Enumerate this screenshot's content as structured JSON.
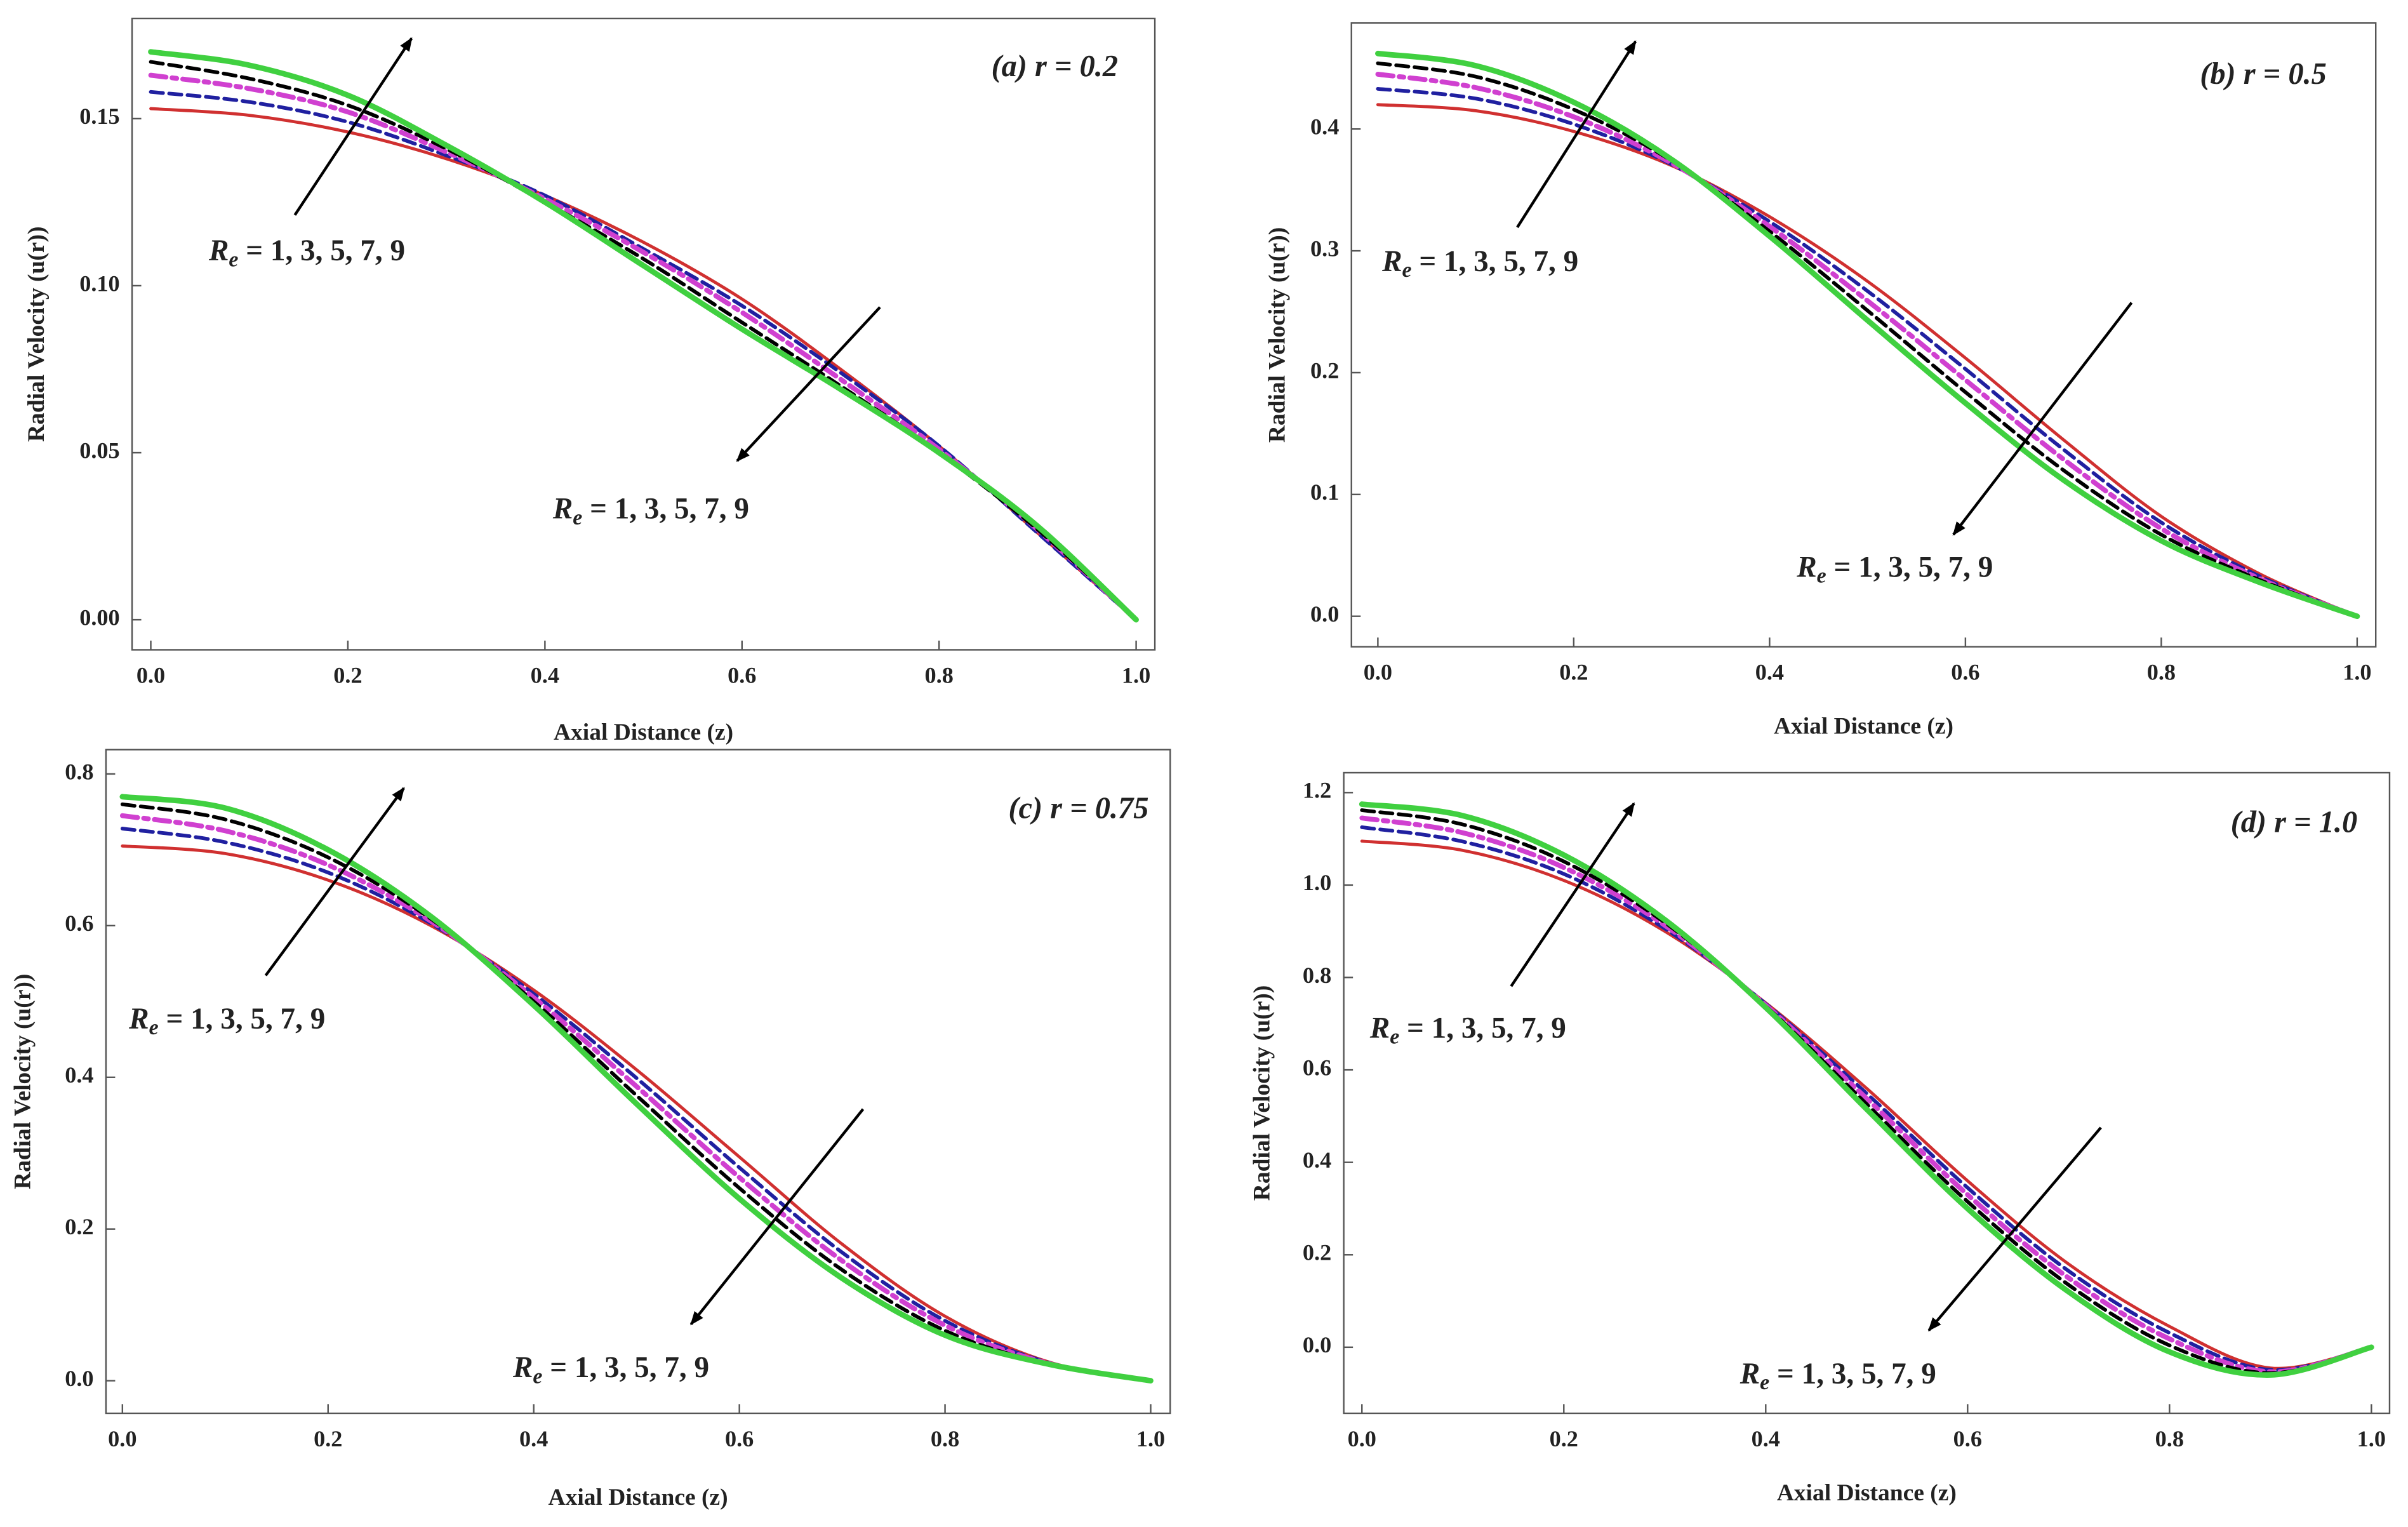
{
  "chart_data": [
    {
      "type": "line",
      "title": "(a) r = 0.2",
      "xlabel": "Axial Distance (z)",
      "ylabel": "Radial Velocity (u(r))",
      "annotations": [
        "Re = 1,  3,  5,  7,  9",
        "Re = 1,  3,  5,  7,  9"
      ],
      "x": [
        0,
        0.1,
        0.2,
        0.3,
        0.4,
        0.5,
        0.6,
        0.7,
        0.8,
        0.9,
        1
      ],
      "series": [
        {
          "color": "#d03030",
          "linestyle": "solid",
          "values": [
            0.153,
            0.151,
            0.146,
            0.138,
            0.127,
            0.113,
            0.096,
            0.075,
            0.052,
            0.026,
            0
          ]
        },
        {
          "color": "#2020a0",
          "linestyle": "dashed",
          "values": [
            0.158,
            0.155,
            0.149,
            0.139,
            0.127,
            0.111,
            0.094,
            0.074,
            0.052,
            0.026,
            0
          ]
        },
        {
          "color": "#d040d0",
          "linestyle": "dashdot",
          "values": [
            0.163,
            0.159,
            0.152,
            0.14,
            0.126,
            0.11,
            0.092,
            0.072,
            0.051,
            0.027,
            0
          ]
        },
        {
          "color": "#000000",
          "linestyle": "dashed",
          "values": [
            0.167,
            0.162,
            0.154,
            0.141,
            0.125,
            0.108,
            0.089,
            0.07,
            0.05,
            0.027,
            0
          ]
        },
        {
          "color": "#40d040",
          "linestyle": "thick",
          "values": [
            0.17,
            0.166,
            0.157,
            0.142,
            0.125,
            0.106,
            0.087,
            0.069,
            0.05,
            0.028,
            0
          ]
        }
      ],
      "xlim": [
        -0.019,
        1.019
      ],
      "ylim": [
        -0.009,
        0.18
      ],
      "xticks": [
        {
          "value": 0,
          "label": "0.0"
        },
        0.2,
        0.4,
        0.6,
        0.8,
        {
          "value": 1,
          "label": "1.0"
        }
      ],
      "yticks": [
        {
          "value": 0,
          "label": "0.00"
        },
        {
          "value": 0.05,
          "label": "0.05"
        },
        {
          "value": 0.1,
          "label": "0.10"
        },
        {
          "value": 0.15,
          "label": "0.15"
        }
      ]
    },
    {
      "type": "line",
      "title": "(b) r = 0.5",
      "xlabel": "Axial Distance (z)",
      "ylabel": "Radial Velocity (u(r))",
      "annotations": [
        "Re = 1,  3,  5,  7,  9",
        "Re = 1,  3,  5,  7,  9"
      ],
      "x": [
        0,
        0.1,
        0.2,
        0.3,
        0.4,
        0.5,
        0.6,
        0.7,
        0.8,
        0.9,
        1
      ],
      "series": [
        {
          "color": "#d03030",
          "linestyle": "solid",
          "values": [
            0.42,
            0.415,
            0.398,
            0.37,
            0.328,
            0.275,
            0.212,
            0.145,
            0.082,
            0.035,
            0
          ]
        },
        {
          "color": "#2020a0",
          "linestyle": "dashed",
          "values": [
            0.433,
            0.425,
            0.404,
            0.371,
            0.324,
            0.267,
            0.203,
            0.137,
            0.077,
            0.033,
            0
          ]
        },
        {
          "color": "#d040d0",
          "linestyle": "dashdot",
          "values": [
            0.445,
            0.434,
            0.41,
            0.372,
            0.32,
            0.259,
            0.194,
            0.129,
            0.072,
            0.031,
            0
          ]
        },
        {
          "color": "#000000",
          "linestyle": "dashed",
          "values": [
            0.454,
            0.443,
            0.416,
            0.374,
            0.316,
            0.251,
            0.184,
            0.12,
            0.067,
            0.03,
            0
          ]
        },
        {
          "color": "#40d040",
          "linestyle": "thick",
          "values": [
            0.462,
            0.452,
            0.422,
            0.375,
            0.312,
            0.243,
            0.175,
            0.112,
            0.062,
            0.028,
            0
          ]
        }
      ],
      "xlim": [
        -0.027,
        1.019
      ],
      "ylim": [
        -0.025,
        0.487
      ],
      "xticks": [
        {
          "value": 0,
          "label": "0.0"
        },
        0.2,
        0.4,
        0.6,
        0.8,
        {
          "value": 1,
          "label": "1.0"
        }
      ],
      "yticks": [
        {
          "value": 0,
          "label": "0.0"
        },
        0.1,
        0.2,
        0.3,
        0.4
      ]
    },
    {
      "type": "line",
      "title": "(c) r = 0.75",
      "xlabel": "Axial Distance (z)",
      "ylabel": "Radial Velocity (u(r))",
      "annotations": [
        "Re = 1,  3,  5,  7,  9",
        "Re = 1,  3,  5,  7,  9"
      ],
      "x": [
        0,
        0.1,
        0.2,
        0.3,
        0.4,
        0.5,
        0.6,
        0.7,
        0.8,
        0.9,
        1
      ],
      "series": [
        {
          "color": "#d03030",
          "linestyle": "solid",
          "values": [
            0.705,
            0.695,
            0.66,
            0.6,
            0.515,
            0.41,
            0.295,
            0.18,
            0.085,
            0.025,
            0
          ]
        },
        {
          "color": "#2020a0",
          "linestyle": "dashed",
          "values": [
            0.728,
            0.71,
            0.67,
            0.603,
            0.51,
            0.399,
            0.281,
            0.169,
            0.079,
            0.024,
            0
          ]
        },
        {
          "color": "#d040d0",
          "linestyle": "dashdot",
          "values": [
            0.745,
            0.725,
            0.68,
            0.606,
            0.505,
            0.388,
            0.268,
            0.158,
            0.073,
            0.023,
            0
          ]
        },
        {
          "color": "#000000",
          "linestyle": "dashed",
          "values": [
            0.76,
            0.74,
            0.69,
            0.609,
            0.5,
            0.376,
            0.254,
            0.146,
            0.066,
            0.022,
            0
          ]
        },
        {
          "color": "#40d040",
          "linestyle": "thick",
          "values": [
            0.77,
            0.755,
            0.7,
            0.612,
            0.495,
            0.365,
            0.24,
            0.135,
            0.06,
            0.022,
            0
          ]
        }
      ],
      "xlim": [
        -0.016,
        1.019
      ],
      "ylim": [
        -0.043,
        0.832
      ],
      "xticks": [
        {
          "value": 0,
          "label": "0.0"
        },
        0.2,
        0.4,
        0.6,
        0.8,
        {
          "value": 1,
          "label": "1.0"
        }
      ],
      "yticks": [
        {
          "value": 0,
          "label": "0.0"
        },
        0.2,
        0.4,
        0.6,
        0.8
      ]
    },
    {
      "type": "line",
      "title": "(d) r = 1.0",
      "xlabel": "Axial Distance (z)",
      "ylabel": "Radial Velocity (u(r))",
      "annotations": [
        "Re = 1,  3,  5,  7,  9",
        "Re = 1,  3,  5,  7,  9"
      ],
      "x": [
        0,
        0.1,
        0.2,
        0.3,
        0.4,
        0.5,
        0.6,
        0.7,
        0.8,
        0.9,
        1
      ],
      "series": [
        {
          "color": "#d03030",
          "linestyle": "solid",
          "values": [
            1.095,
            1.075,
            1.01,
            0.9,
            0.745,
            0.56,
            0.36,
            0.18,
            0.045,
            -0.045,
            0
          ]
        },
        {
          "color": "#2020a0",
          "linestyle": "dashed",
          "values": [
            1.125,
            1.094,
            1.024,
            0.906,
            0.743,
            0.549,
            0.345,
            0.165,
            0.031,
            -0.049,
            0
          ]
        },
        {
          "color": "#d040d0",
          "linestyle": "dashdot",
          "values": [
            1.145,
            1.113,
            1.038,
            0.913,
            0.74,
            0.538,
            0.33,
            0.15,
            0.018,
            -0.053,
            0
          ]
        },
        {
          "color": "#000000",
          "linestyle": "dashed",
          "values": [
            1.162,
            1.131,
            1.051,
            0.919,
            0.738,
            0.526,
            0.315,
            0.135,
            0.004,
            -0.056,
            0
          ]
        },
        {
          "color": "#40d040",
          "linestyle": "thick",
          "values": [
            1.175,
            1.15,
            1.065,
            0.925,
            0.735,
            0.515,
            0.3,
            0.12,
            -0.01,
            -0.06,
            0
          ]
        }
      ],
      "xlim": [
        -0.018,
        1.018
      ],
      "ylim": [
        -0.143,
        1.243
      ],
      "xticks": [
        {
          "value": 0,
          "label": "0.0"
        },
        0.2,
        0.4,
        0.6,
        0.8,
        {
          "value": 1,
          "label": "1.0"
        }
      ],
      "yticks": [
        {
          "value": 0,
          "label": "0.0"
        },
        0.2,
        0.4,
        0.6,
        0.8,
        {
          "value": 1,
          "label": "1.0"
        },
        1.2
      ]
    }
  ]
}
